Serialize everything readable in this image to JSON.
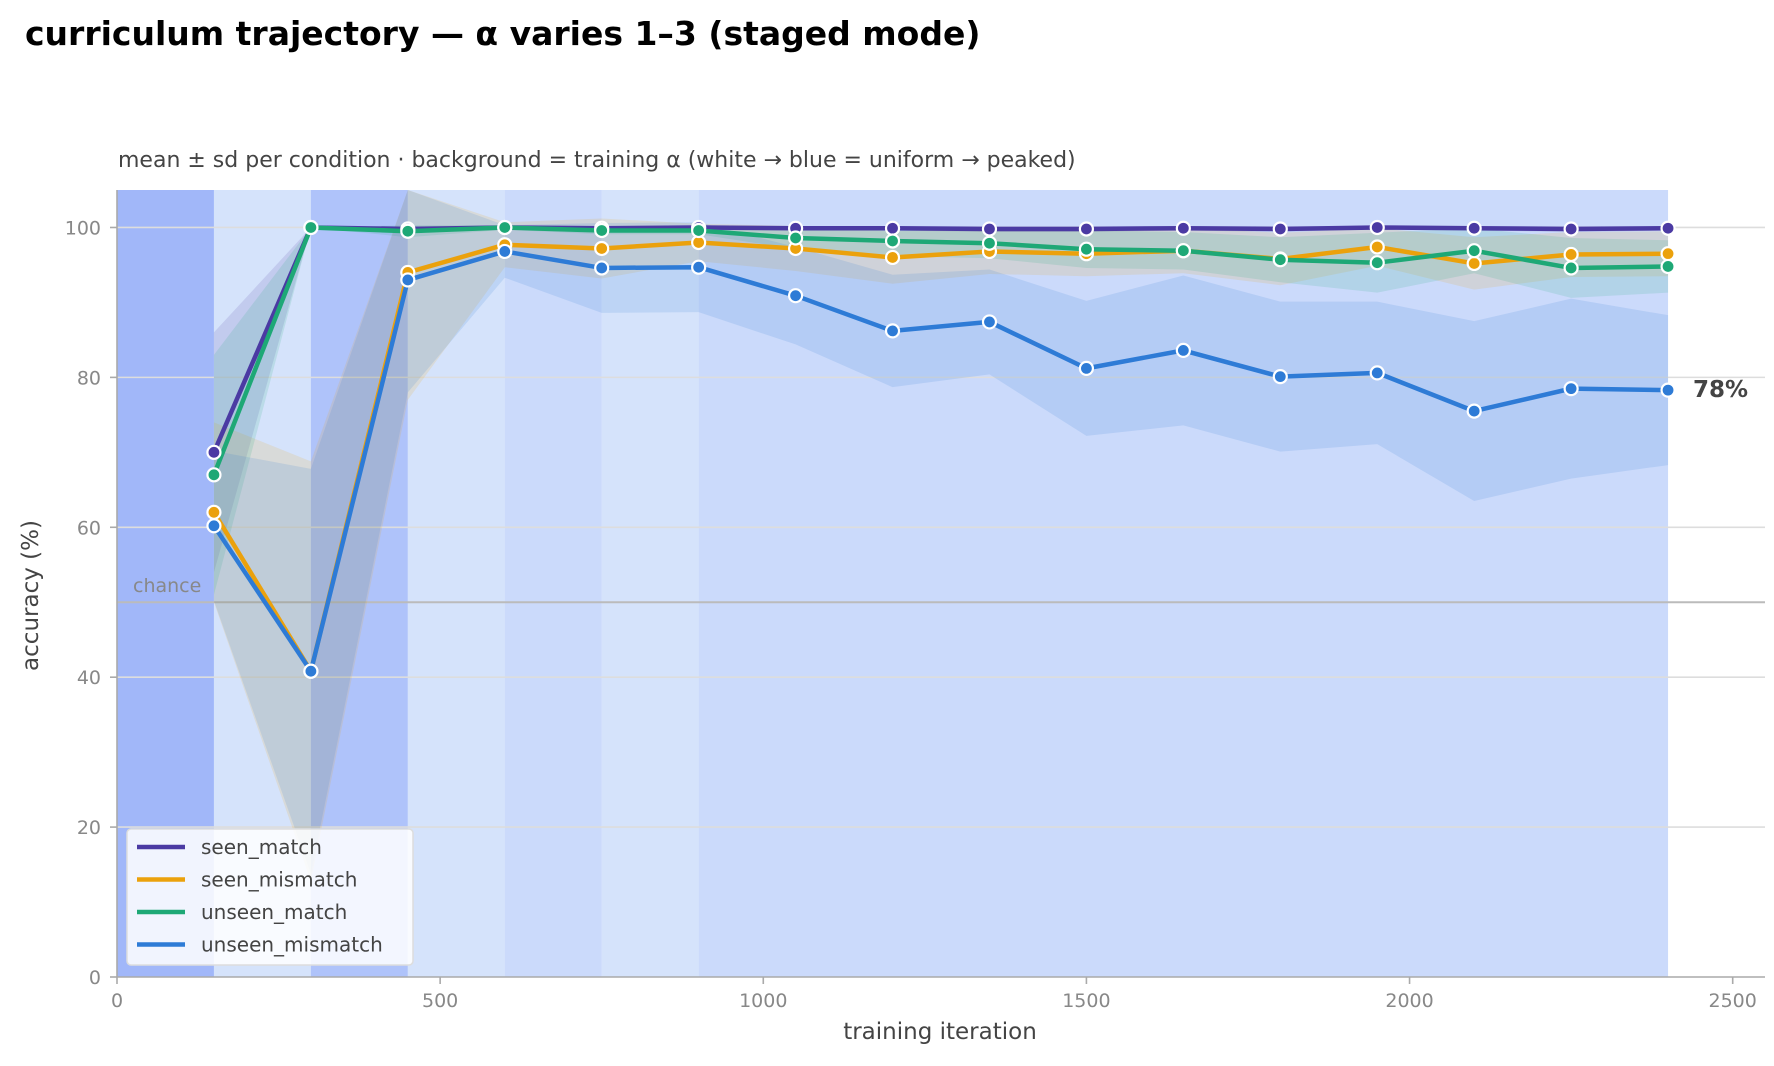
{
  "chart_data": {
    "type": "line",
    "title": "curriculum trajectory — α varies 1–3 (staged mode)",
    "subtitle": "mean ± sd per condition · background = training α (white → blue = uniform → peaked)",
    "xlabel": "training iteration",
    "ylabel": "accuracy (%)",
    "xlim": [
      0,
      2550
    ],
    "ylim": [
      0,
      105
    ],
    "xticks": [
      0,
      500,
      1000,
      1500,
      2000,
      2500
    ],
    "yticks": [
      0,
      20,
      40,
      60,
      80,
      100
    ],
    "grid": "horizontal",
    "legend_position": "lower-left",
    "chance": {
      "label": "chance",
      "value": 50
    },
    "end_annotation": {
      "series": "unseen_mismatch",
      "text": "78%"
    },
    "x": [
      150,
      300,
      450,
      600,
      750,
      900,
      1050,
      1200,
      1350,
      1500,
      1650,
      1800,
      1950,
      2100,
      2250,
      2400
    ],
    "background_bands": [
      {
        "x0": 0,
        "x1": 150,
        "shade": 1.0
      },
      {
        "x0": 150,
        "x1": 300,
        "shade": 0.35
      },
      {
        "x0": 300,
        "x1": 450,
        "shade": 0.85
      },
      {
        "x0": 450,
        "x1": 600,
        "shade": 0.35
      },
      {
        "x0": 600,
        "x1": 750,
        "shade": 0.5
      },
      {
        "x0": 750,
        "x1": 900,
        "shade": 0.35
      },
      {
        "x0": 900,
        "x1": 2400,
        "shade": 0.5
      }
    ],
    "series": [
      {
        "name": "seen_match",
        "color": "#4b3aa3",
        "values": [
          70,
          100,
          99.8,
          100,
          99.9,
          100,
          99.9,
          99.9,
          99.8,
          99.8,
          99.9,
          99.8,
          100,
          99.9,
          99.8,
          99.9
        ],
        "sd": [
          16,
          0,
          0.4,
          0.2,
          0.3,
          0.3,
          0.3,
          0.3,
          0.4,
          0.4,
          0.3,
          0.4,
          0.2,
          0.3,
          0.4,
          0.3
        ]
      },
      {
        "name": "seen_mismatch",
        "color": "#eba10c",
        "values": [
          62,
          40.8,
          94,
          97.7,
          97.2,
          98,
          97.2,
          96,
          96.8,
          96.5,
          96.9,
          95.8,
          97.4,
          95.2,
          96.4,
          96.5
        ],
        "sd": [
          12,
          28,
          17,
          3,
          4,
          2.5,
          3,
          3.5,
          3,
          3,
          3,
          3.5,
          2.5,
          3.5,
          3,
          3
        ]
      },
      {
        "name": "unseen_match",
        "color": "#1ea876",
        "values": [
          67,
          100,
          99.5,
          100,
          99.6,
          99.6,
          98.6,
          98.2,
          97.9,
          97.1,
          96.9,
          95.7,
          95.3,
          96.9,
          94.6,
          94.8
        ],
        "sd": [
          16,
          0,
          0.8,
          0.3,
          0.5,
          0.5,
          1.5,
          2,
          2,
          2.5,
          2.5,
          3,
          4,
          3,
          4,
          3.5
        ]
      },
      {
        "name": "unseen_mismatch",
        "color": "#2e7bd6",
        "values": [
          60.2,
          40.8,
          93,
          96.8,
          94.6,
          94.7,
          90.9,
          86.2,
          87.4,
          81.2,
          83.6,
          80.1,
          80.6,
          75.5,
          78.5,
          78.3
        ],
        "sd": [
          10,
          27,
          15,
          3.5,
          6,
          6,
          6.5,
          7.5,
          7,
          9,
          10,
          10,
          9.5,
          12,
          12,
          10
        ]
      }
    ]
  }
}
